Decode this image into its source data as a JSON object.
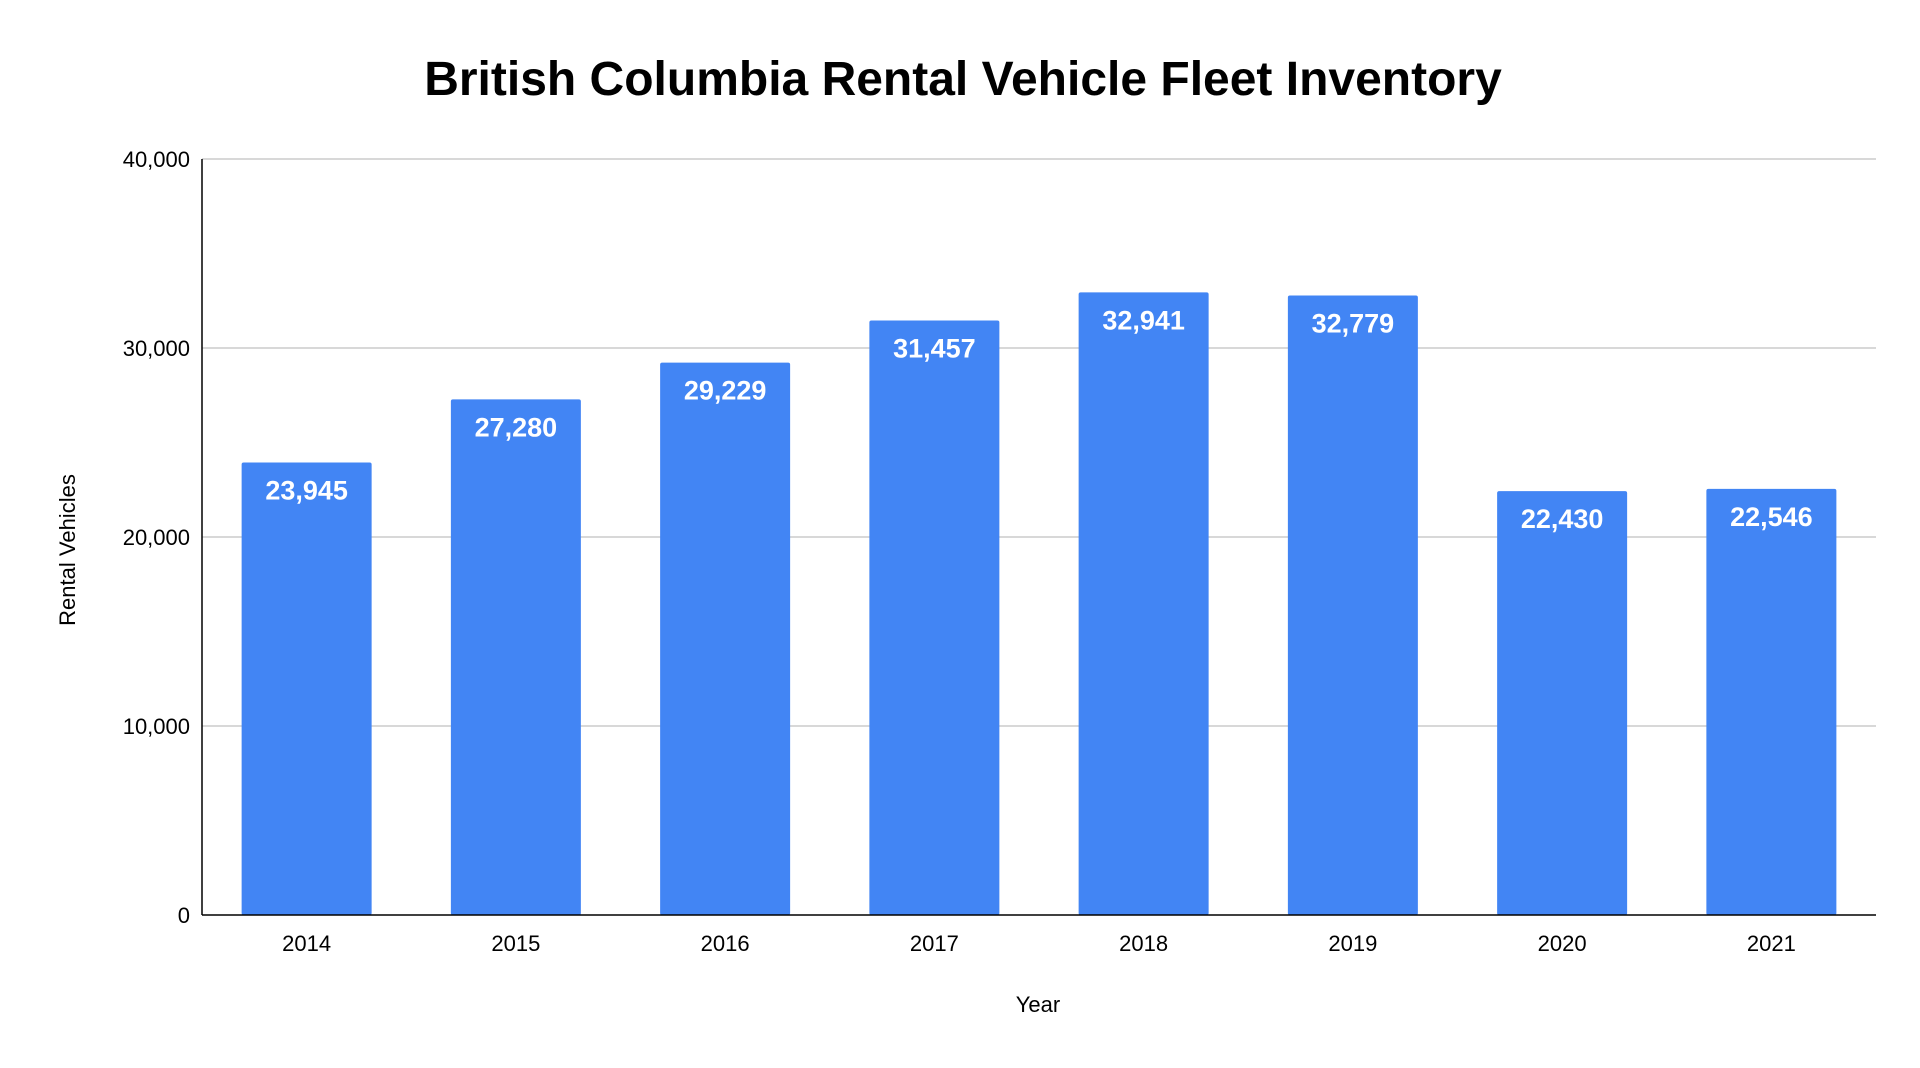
{
  "chart_data": {
    "type": "bar",
    "title": "British Columbia Rental Vehicle Fleet Inventory",
    "xlabel": "Year",
    "ylabel": "Rental Vehicles",
    "categories": [
      "2014",
      "2015",
      "2016",
      "2017",
      "2018",
      "2019",
      "2020",
      "2021"
    ],
    "values": [
      23945,
      27280,
      29229,
      31457,
      32941,
      32779,
      22430,
      22546
    ],
    "data_labels": [
      "23,945",
      "27,280",
      "29,229",
      "31,457",
      "32,941",
      "32,779",
      "22,430",
      "22,546"
    ],
    "ylim": [
      0,
      40000
    ],
    "y_ticks": [
      {
        "value": 0,
        "label": "0"
      },
      {
        "value": 10000,
        "label": "10,000"
      },
      {
        "value": 20000,
        "label": "20,000"
      },
      {
        "value": 30000,
        "label": "30,000"
      },
      {
        "value": 40000,
        "label": "40,000"
      }
    ],
    "grid": true,
    "legend": "none",
    "colors": {
      "bar": "#4285f4",
      "gridline": "#cccccc",
      "axis": "#000000",
      "data_label": "#ffffff"
    }
  }
}
